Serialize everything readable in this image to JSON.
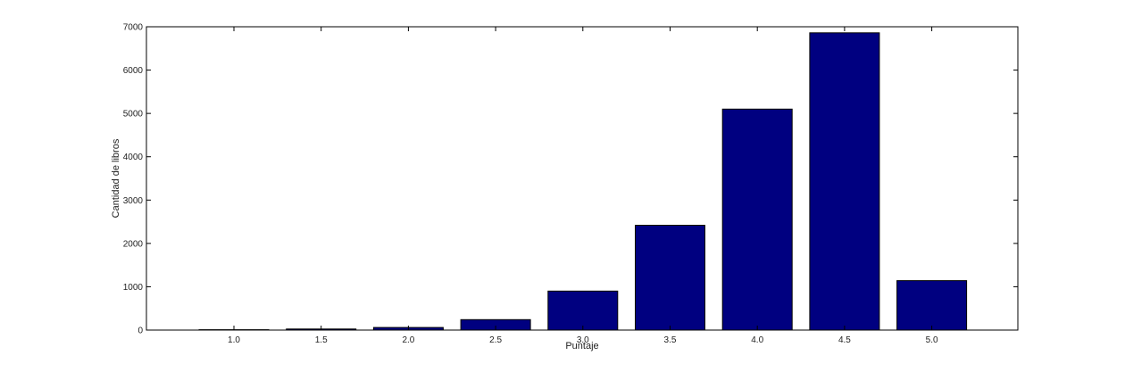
{
  "chart_data": {
    "type": "bar",
    "xlabel": "Puntaje",
    "ylabel": "Cantidad de libros",
    "categories": [
      "1.0",
      "1.5",
      "2.0",
      "2.5",
      "3.0",
      "3.5",
      "4.0",
      "4.5",
      "5.0"
    ],
    "values": [
      8,
      25,
      60,
      240,
      900,
      2420,
      5100,
      6860,
      1140
    ],
    "ylim": [
      0,
      7000
    ],
    "yticks": [
      0,
      1000,
      2000,
      3000,
      4000,
      5000,
      6000,
      7000
    ],
    "grid": false,
    "bar_color": "#000080",
    "edge_color": "#000000"
  }
}
